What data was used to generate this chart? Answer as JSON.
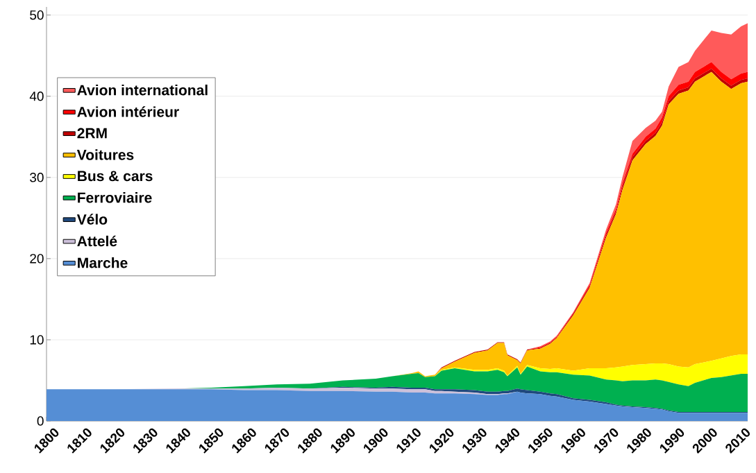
{
  "chart_data": {
    "type": "area",
    "stacked": true,
    "grid": "y",
    "legend": "top left",
    "xlim": [
      1800,
      2013
    ],
    "ylim": [
      0,
      51
    ],
    "xticks": [
      1800,
      1810,
      1820,
      1830,
      1840,
      1850,
      1860,
      1870,
      1880,
      1890,
      1900,
      1910,
      1920,
      1930,
      1940,
      1950,
      1960,
      1970,
      1980,
      1990,
      2000,
      2010
    ],
    "yticks": [
      0,
      10,
      20,
      30,
      40,
      50
    ],
    "x": [
      1800,
      1820,
      1840,
      1850,
      1860,
      1870,
      1880,
      1890,
      1900,
      1905,
      1911,
      1913,
      1915,
      1918,
      1920,
      1924,
      1930,
      1934,
      1937,
      1939,
      1940,
      1943,
      1944,
      1946,
      1950,
      1953,
      1955,
      1960,
      1965,
      1970,
      1973,
      1975,
      1978,
      1982,
      1985,
      1987,
      1989,
      1992,
      1995,
      1997,
      2002,
      2005,
      2008,
      2011,
      2013
    ],
    "series": [
      {
        "name": "Marche",
        "color": "#558ed5",
        "values": [
          3.9,
          3.9,
          3.9,
          3.9,
          3.8,
          3.8,
          3.7,
          3.7,
          3.6,
          3.6,
          3.5,
          3.5,
          3.5,
          3.4,
          3.4,
          3.4,
          3.3,
          3.2,
          3.2,
          3.3,
          3.3,
          3.6,
          3.5,
          3.4,
          3.3,
          3.1,
          3.0,
          2.6,
          2.4,
          2.1,
          1.9,
          1.8,
          1.7,
          1.6,
          1.5,
          1.4,
          1.2,
          1.0,
          1.0,
          1.0,
          1.0,
          1.0,
          1.0,
          1.0,
          1.0
        ]
      },
      {
        "name": "Attelé",
        "color": "#ccc0da",
        "values": [
          0,
          0,
          0.1,
          0.1,
          0.2,
          0.3,
          0.3,
          0.4,
          0.4,
          0.4,
          0.4,
          0.4,
          0.4,
          0.3,
          0.3,
          0.2,
          0.2,
          0.1,
          0.1,
          0.1,
          0.1,
          0,
          0,
          0,
          0,
          0,
          0,
          0,
          0,
          0,
          0,
          0,
          0,
          0,
          0,
          0,
          0,
          0,
          0,
          0,
          0,
          0,
          0,
          0,
          0
        ]
      },
      {
        "name": "Vélo",
        "color": "#1f497d",
        "values": [
          0,
          0,
          0,
          0,
          0,
          0,
          0,
          0.1,
          0.1,
          0.2,
          0.2,
          0.2,
          0.2,
          0.2,
          0.2,
          0.3,
          0.3,
          0.3,
          0.3,
          0.3,
          0.3,
          0.4,
          0.4,
          0.4,
          0.3,
          0.3,
          0.3,
          0.2,
          0.2,
          0.2,
          0.1,
          0.1,
          0.1,
          0.1,
          0.1,
          0.1,
          0.1,
          0.1,
          0.1,
          0.1,
          0.1,
          0.1,
          0.1,
          0.1,
          0.1
        ]
      },
      {
        "name": "Ferroviaire",
        "color": "#00b050",
        "values": [
          0,
          0,
          0,
          0.1,
          0.3,
          0.4,
          0.6,
          0.8,
          1.1,
          1.3,
          1.7,
          1.8,
          1.3,
          1.6,
          2.3,
          2.6,
          2.3,
          2.5,
          2.7,
          2.3,
          1.8,
          2.6,
          1.8,
          2.9,
          2.5,
          2.6,
          2.7,
          2.9,
          3.0,
          2.8,
          3.0,
          3.0,
          3.2,
          3.3,
          3.5,
          3.5,
          3.5,
          3.4,
          3.2,
          3.6,
          4.2,
          4.3,
          4.5,
          4.7,
          4.7
        ]
      },
      {
        "name": "Bus & cars",
        "color": "#ffff00",
        "values": [
          0,
          0,
          0,
          0,
          0,
          0,
          0,
          0,
          0,
          0,
          0,
          0,
          0,
          0,
          0.1,
          0.1,
          0.2,
          0.2,
          0.2,
          0.2,
          0.1,
          0.2,
          0.1,
          0.2,
          0.4,
          0.4,
          0.5,
          0.5,
          0.9,
          1.4,
          1.6,
          1.8,
          1.9,
          2.0,
          2.0,
          2.1,
          2.2,
          2.2,
          2.3,
          2.3,
          2.1,
          2.3,
          2.4,
          2.4,
          2.4
        ]
      },
      {
        "name": "Voitures",
        "color": "#ffc000",
        "values": [
          0,
          0,
          0,
          0,
          0,
          0,
          0,
          0,
          0,
          0,
          0.1,
          0.2,
          0.1,
          0.2,
          0.2,
          0.7,
          2.1,
          2.4,
          3.1,
          3.4,
          2.5,
          0.7,
          1.3,
          1.8,
          2.4,
          3.1,
          3.7,
          6.8,
          9.9,
          16.1,
          18.9,
          21.8,
          25.2,
          27.1,
          28.0,
          29.3,
          32.0,
          33.6,
          34.1,
          34.8,
          35.6,
          34.1,
          32.9,
          33.4,
          33.6
        ]
      },
      {
        "name": "2RM",
        "color": "#c00000",
        "values": [
          0,
          0,
          0,
          0,
          0,
          0,
          0,
          0,
          0,
          0,
          0,
          0,
          0,
          0,
          0.1,
          0.1,
          0.1,
          0.1,
          0.1,
          0.1,
          0.1,
          0.1,
          0.1,
          0.1,
          0.1,
          0.1,
          0.1,
          0.2,
          0.2,
          0.3,
          0.3,
          0.4,
          0.4,
          0.4,
          0.4,
          0.4,
          0.4,
          0.4,
          0.4,
          0.4,
          0.4,
          0.4,
          0.4,
          0.4,
          0.4
        ]
      },
      {
        "name": "Avion intérieur",
        "color": "#ff0000",
        "values": [
          0,
          0,
          0,
          0,
          0,
          0,
          0,
          0,
          0,
          0,
          0,
          0,
          0,
          0,
          0,
          0,
          0,
          0,
          0,
          0,
          0,
          0,
          0,
          0,
          0.1,
          0.1,
          0.1,
          0.1,
          0.2,
          0.3,
          0.3,
          0.4,
          0.4,
          0.5,
          0.5,
          0.6,
          0.6,
          0.7,
          0.7,
          0.8,
          0.8,
          0.8,
          0.8,
          0.8,
          0.8
        ]
      },
      {
        "name": "Avion international",
        "color": "#ff5a5a",
        "values": [
          0,
          0,
          0,
          0,
          0,
          0,
          0,
          0,
          0,
          0,
          0,
          0,
          0,
          0,
          0,
          0,
          0,
          0,
          0,
          0,
          0,
          0,
          0,
          0,
          0.1,
          0.1,
          0.1,
          0.1,
          0.2,
          0.4,
          0.6,
          0.8,
          1.6,
          1.1,
          1.0,
          0.7,
          1.2,
          2.2,
          2.4,
          2.6,
          3.9,
          4.8,
          5.5,
          5.8,
          6.0
        ]
      }
    ]
  }
}
